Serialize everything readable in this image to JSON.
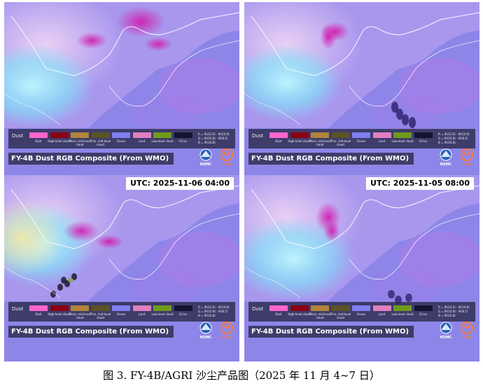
{
  "legend": {
    "title": "Dust",
    "items": [
      {
        "label": "Dust",
        "color": "#ff66cc"
      },
      {
        "label": "High-level cloud",
        "color": "#8b0014"
      },
      {
        "label": "Thick, mid-level cloud",
        "color": "#b0843a"
      },
      {
        "label": "Thin, mid-level cloud",
        "color": "#5b5326"
      },
      {
        "label": "Ocean",
        "color": "#7f7ff0"
      },
      {
        "label": "Land",
        "color": "#e07fc0"
      },
      {
        "label": "Low-level cloud",
        "color": "#6f9a1c"
      },
      {
        "label": "Cirrus",
        "color": "#141433"
      }
    ],
    "formula": {
      "r": "R = IR(12.0) - IR(10.8)",
      "g": "G = IR(10.8) - IR(8.5)",
      "b": "B = IR(10.8)"
    }
  },
  "product_title": "FY-4B Dust RGB Composite (From WMO)",
  "logos": {
    "nsmc": "NSMC",
    "cma": "CMA"
  },
  "panels": [
    {
      "id": "top-left",
      "utc": ""
    },
    {
      "id": "top-right",
      "utc": ""
    },
    {
      "id": "bottom-left",
      "utc": "UTC:  2025-11-06 04:00"
    },
    {
      "id": "bottom-right",
      "utc": "UTC:  2025-11-05 08:00"
    }
  ],
  "figure_caption": "图 3. FY-4B/AGRI 沙尘产品图（2025 年 11 月 4~7 日）",
  "colors": {
    "ocean": "#8d86e8",
    "land": "#c9a6f0",
    "dust_plume": "#d020b0",
    "cold_cloud": "#7fe8f8",
    "coast": "#ffffff"
  }
}
